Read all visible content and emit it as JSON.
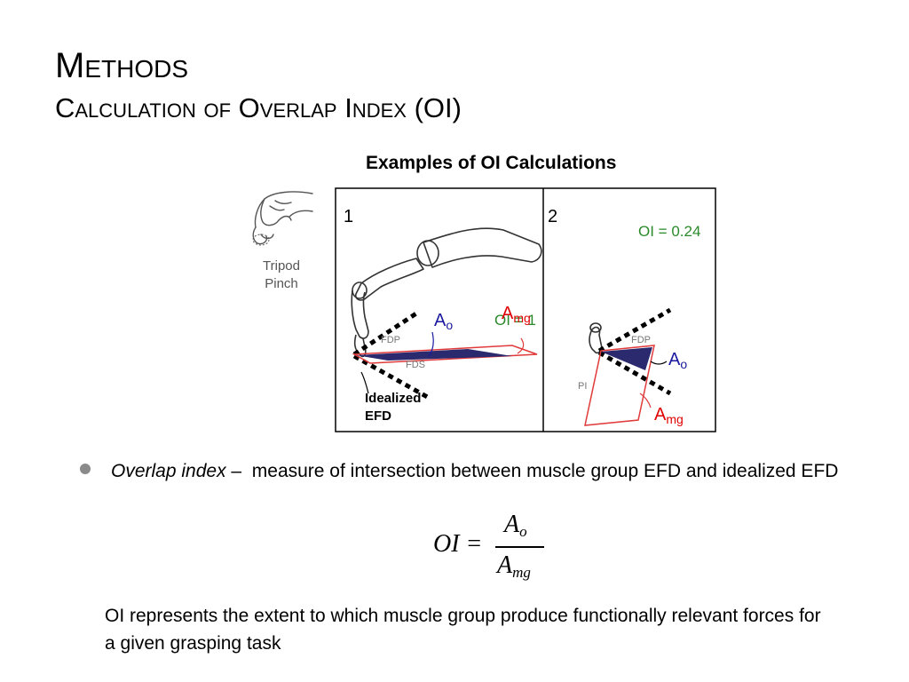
{
  "slide": {
    "title": "Methods",
    "subtitle": "Calculation of Overlap Index (OI)"
  },
  "figure": {
    "title": "Examples of OI Calculations",
    "grasp_label_line1": "Tripod",
    "grasp_label_line2": "Pinch",
    "panels": [
      {
        "number": "1",
        "oi_label": "OI = 1",
        "ao_label": "A",
        "ao_sub": "o",
        "amg_label": "A",
        "amg_sub": "mg",
        "muscles": [
          "FDP",
          "FDS"
        ],
        "efd_line1": "Idealized",
        "efd_line2": "EFD"
      },
      {
        "number": "2",
        "oi_label": "OI = 0.24",
        "ao_label": "A",
        "ao_sub": "o",
        "amg_label": "A",
        "amg_sub": "mg",
        "muscles": [
          "FDP",
          "PI"
        ]
      }
    ],
    "colors": {
      "overlap_fill": "#2b2a6e",
      "muscle_outline": "#e03a3a",
      "ao_text": "#1a1aa0",
      "amg_text": "#e00000",
      "oi_text": "#2a8a2a"
    }
  },
  "bullet": {
    "term": "Overlap index",
    "dash": " –  ",
    "definition": "measure of intersection between muscle group EFD and idealized EFD"
  },
  "formula": {
    "lhs": "OI =",
    "num_main": "A",
    "num_sub": "o",
    "den_main": "A",
    "den_sub": "mg"
  },
  "conclusion": "OI represents the extent to which muscle group produce functionally relevant forces for a given grasping task"
}
